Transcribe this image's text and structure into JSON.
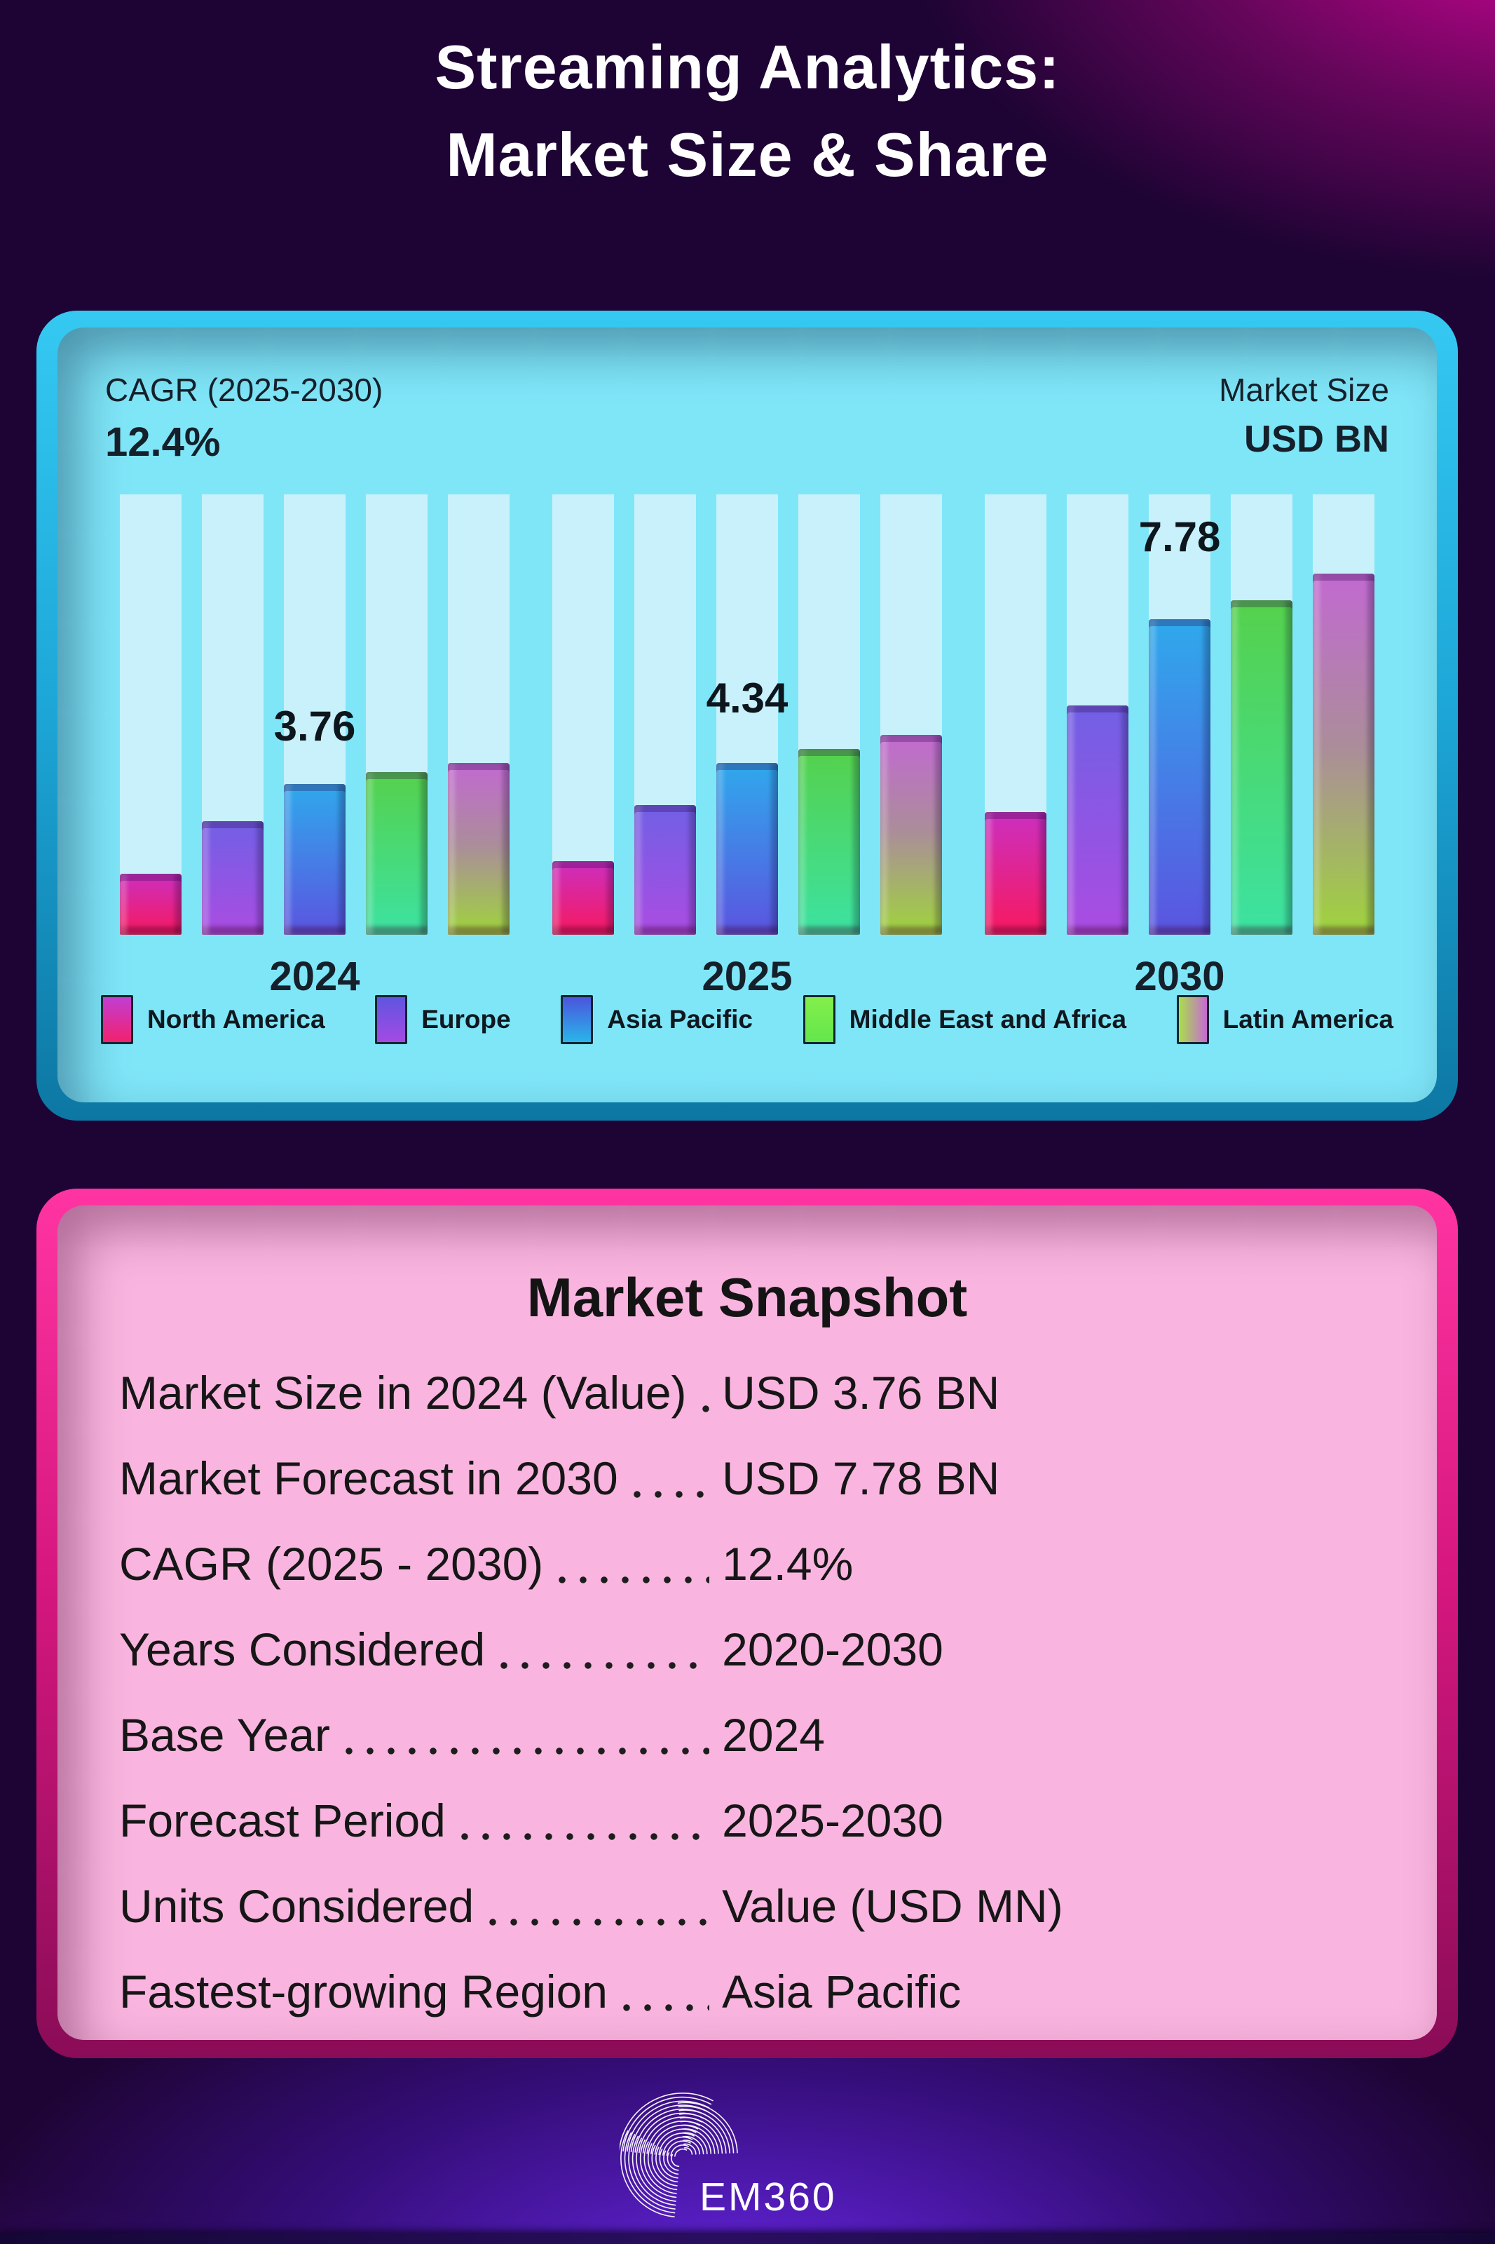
{
  "header": {
    "title_line1": "Streaming Analytics:",
    "title_line2": "Market Size & Share"
  },
  "chart_panel": {
    "cagr_label": "CAGR (2025-2030)",
    "cagr_value": "12.4%",
    "market_size_label": "Market Size",
    "market_size_unit": "USD BN"
  },
  "chart_data": {
    "type": "bar",
    "title": "Streaming Analytics Market Size & Share",
    "ylabel": "Market Size (USD BN)",
    "categories": [
      "2024",
      "2025",
      "2030"
    ],
    "totals": [
      3.76,
      4.34,
      7.78
    ],
    "total_labels": [
      "3.76",
      "4.34",
      "7.78"
    ],
    "cagr_2025_2030": "12.4%",
    "legend_position": "bottom",
    "grid": false,
    "per_region_values_estimated_from_bar_heights": true,
    "series": [
      {
        "name": "North America",
        "values": [
          0.35,
          0.42,
          0.7
        ],
        "bar_colors": [
          "#cb2fc0",
          "#f7195f"
        ],
        "legend_colors": [
          "#c13ed3",
          "#f2216e"
        ],
        "legend_dir": "180deg"
      },
      {
        "name": "Europe",
        "values": [
          0.65,
          0.74,
          1.31
        ],
        "bar_colors": [
          "#7160e5",
          "#ab4ce2"
        ],
        "legend_colors": [
          "#5f55e0",
          "#a44ae3"
        ],
        "legend_dir": "180deg"
      },
      {
        "name": "Asia Pacific",
        "values": [
          0.86,
          0.98,
          1.8
        ],
        "bar_colors": [
          "#2fa9ec",
          "#5b54e0"
        ],
        "legend_colors": [
          "#4a55dd",
          "#2ab5ea"
        ],
        "legend_dir": "180deg"
      },
      {
        "name": "Middle East and Africa",
        "values": [
          0.93,
          1.06,
          1.91
        ],
        "bar_colors": [
          "#55d14c",
          "#3ce2a2"
        ],
        "legend_colors": [
          "#84ef4b",
          "#63e64c"
        ],
        "legend_dir": "180deg"
      },
      {
        "name": "Latin America",
        "values": [
          0.98,
          1.14,
          2.06
        ],
        "bar_colors": [
          "#c269d1",
          "#ab8d9a 48%",
          "#9fd43c"
        ],
        "legend_colors": [
          "#a8e04a",
          "#c76ad4"
        ],
        "legend_dir": "90deg"
      }
    ]
  },
  "snapshot": {
    "title": "Market Snapshot",
    "rows": [
      {
        "label": "Market Size in 2024 (Value)",
        "value": "USD 3.76 BN"
      },
      {
        "label": "Market Forecast in 2030",
        "value": "USD 7.78 BN"
      },
      {
        "label": "CAGR (2025 - 2030)",
        "value": "12.4%"
      },
      {
        "label": "Years Considered",
        "value": "2020-2030"
      },
      {
        "label": "Base Year",
        "value": "2024"
      },
      {
        "label": "Forecast Period",
        "value": "2025-2030"
      },
      {
        "label": "Units Considered",
        "value": "Value (USD MN)"
      },
      {
        "label": "Fastest-growing Region",
        "value": "Asia Pacific"
      }
    ]
  },
  "footer": {
    "brand": "EM360"
  },
  "colors": {
    "page_bg": "#1e0434",
    "top_glow_magenta": "#e0049e",
    "bottom_glow_purple": "#6826e8",
    "chart_panel_bg": "#7fe6f8",
    "chart_track": "#c8f1fb",
    "chart_frame_top": "#35c9f2",
    "chart_frame_bottom": "#0d77a3",
    "snapshot_panel_bg": "#f9b5df",
    "snapshot_frame_top": "#ff34a2",
    "snapshot_frame_bottom": "#8a0c57",
    "text_dark": "#15202a",
    "text_light": "#ffffff"
  }
}
